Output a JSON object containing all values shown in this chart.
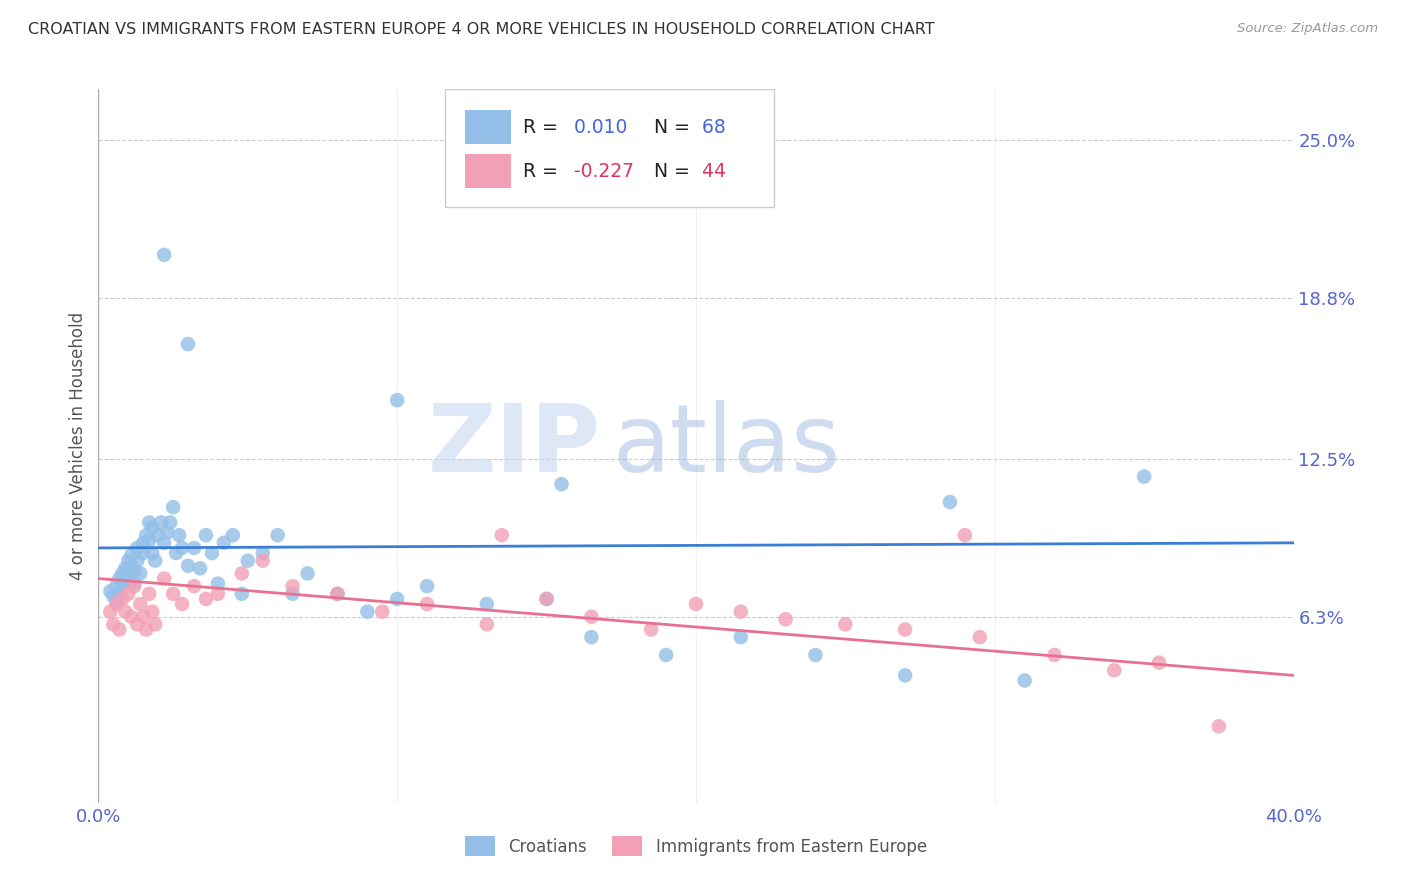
{
  "title": "CROATIAN VS IMMIGRANTS FROM EASTERN EUROPE 4 OR MORE VEHICLES IN HOUSEHOLD CORRELATION CHART",
  "source": "Source: ZipAtlas.com",
  "ylabel": "4 or more Vehicles in Household",
  "xlim": [
    0.0,
    0.4
  ],
  "ylim": [
    -0.01,
    0.27
  ],
  "yticks_right": [
    0.063,
    0.125,
    0.188,
    0.25
  ],
  "ytick_right_labels": [
    "6.3%",
    "12.5%",
    "18.8%",
    "25.0%"
  ],
  "blue_R": 0.01,
  "blue_N": 68,
  "pink_R": -0.227,
  "pink_N": 44,
  "blue_color": "#93bfe8",
  "pink_color": "#f2a0b5",
  "blue_line_color": "#3a7fd4",
  "pink_line_color": "#e87090",
  "legend_label_blue": "Croatians",
  "legend_label_pink": "Immigrants from Eastern Europe",
  "watermark_zip": "ZIP",
  "watermark_atlas": "atlas",
  "blue_x": [
    0.004,
    0.005,
    0.006,
    0.006,
    0.007,
    0.007,
    0.008,
    0.008,
    0.009,
    0.009,
    0.01,
    0.01,
    0.011,
    0.011,
    0.012,
    0.012,
    0.013,
    0.013,
    0.014,
    0.015,
    0.015,
    0.016,
    0.017,
    0.017,
    0.018,
    0.018,
    0.019,
    0.02,
    0.021,
    0.022,
    0.023,
    0.024,
    0.025,
    0.026,
    0.027,
    0.028,
    0.03,
    0.032,
    0.034,
    0.036,
    0.038,
    0.04,
    0.042,
    0.045,
    0.048,
    0.05,
    0.055,
    0.06,
    0.065,
    0.07,
    0.08,
    0.09,
    0.1,
    0.11,
    0.13,
    0.15,
    0.165,
    0.19,
    0.215,
    0.24,
    0.27,
    0.31,
    0.35,
    0.022,
    0.03,
    0.1,
    0.155,
    0.285
  ],
  "blue_y": [
    0.073,
    0.071,
    0.075,
    0.069,
    0.072,
    0.078,
    0.08,
    0.076,
    0.082,
    0.077,
    0.085,
    0.079,
    0.083,
    0.087,
    0.081,
    0.076,
    0.09,
    0.085,
    0.08,
    0.092,
    0.088,
    0.095,
    0.093,
    0.1,
    0.098,
    0.088,
    0.085,
    0.095,
    0.1,
    0.092,
    0.096,
    0.1,
    0.106,
    0.088,
    0.095,
    0.09,
    0.083,
    0.09,
    0.082,
    0.095,
    0.088,
    0.076,
    0.092,
    0.095,
    0.072,
    0.085,
    0.088,
    0.095,
    0.072,
    0.08,
    0.072,
    0.065,
    0.07,
    0.075,
    0.068,
    0.07,
    0.055,
    0.048,
    0.055,
    0.048,
    0.04,
    0.038,
    0.118,
    0.205,
    0.17,
    0.148,
    0.115,
    0.108
  ],
  "pink_x": [
    0.004,
    0.005,
    0.006,
    0.007,
    0.008,
    0.009,
    0.01,
    0.011,
    0.012,
    0.013,
    0.014,
    0.015,
    0.016,
    0.017,
    0.018,
    0.019,
    0.022,
    0.025,
    0.028,
    0.032,
    0.036,
    0.04,
    0.048,
    0.055,
    0.065,
    0.08,
    0.095,
    0.11,
    0.13,
    0.15,
    0.165,
    0.185,
    0.2,
    0.215,
    0.23,
    0.25,
    0.27,
    0.295,
    0.32,
    0.34,
    0.355,
    0.375,
    0.135,
    0.29
  ],
  "pink_y": [
    0.065,
    0.06,
    0.068,
    0.058,
    0.07,
    0.065,
    0.072,
    0.063,
    0.075,
    0.06,
    0.068,
    0.063,
    0.058,
    0.072,
    0.065,
    0.06,
    0.078,
    0.072,
    0.068,
    0.075,
    0.07,
    0.072,
    0.08,
    0.085,
    0.075,
    0.072,
    0.065,
    0.068,
    0.06,
    0.07,
    0.063,
    0.058,
    0.068,
    0.065,
    0.062,
    0.06,
    0.058,
    0.055,
    0.048,
    0.042,
    0.045,
    0.02,
    0.095,
    0.095
  ],
  "blue_line_y_start": 0.09,
  "blue_line_y_end": 0.092,
  "pink_line_y_start": 0.078,
  "pink_line_y_end": 0.04
}
